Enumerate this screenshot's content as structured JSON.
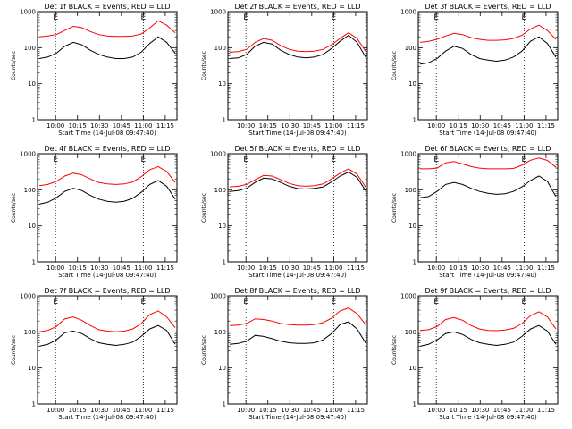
{
  "figure": {
    "xlabel": "Start Time (14-Jul-08 09:47:40)",
    "ylabel": "Counts/sec"
  },
  "chart_data": [
    {
      "type": "line",
      "title": "Det 1f BLACK = Events, RED = LLD",
      "x_ticks": [
        "10:00",
        "10:15",
        "10:30",
        "10:45",
        "11:00",
        "11:15"
      ],
      "y_ticks": [
        "1000",
        "100",
        "10",
        "1"
      ],
      "ylim": [
        1,
        1000
      ],
      "log_y": true,
      "markers": [
        {
          "time": "10:00",
          "label": "E"
        },
        {
          "time": "11:00",
          "label": "E"
        }
      ],
      "series": [
        {
          "color": "#ff0000",
          "values": [
            200,
            210,
            230,
            300,
            390,
            360,
            280,
            230,
            210,
            205,
            205,
            210,
            240,
            350,
            560,
            420,
            260
          ]
        },
        {
          "color": "#000000",
          "values": [
            50,
            55,
            70,
            110,
            140,
            120,
            85,
            65,
            55,
            50,
            50,
            55,
            75,
            130,
            200,
            140,
            70
          ]
        }
      ]
    },
    {
      "type": "line",
      "title": "Det 2f BLACK = Events, RED = LLD",
      "x_ticks": [
        "10:00",
        "10:15",
        "10:30",
        "10:45",
        "11:00",
        "11:15"
      ],
      "y_ticks": [
        "1000",
        "100",
        "10",
        "1"
      ],
      "ylim": [
        1,
        1000
      ],
      "log_y": true,
      "markers": [
        {
          "time": "10:00",
          "label": "E"
        },
        {
          "time": "11:00",
          "label": "E"
        }
      ],
      "series": [
        {
          "color": "#ff0000",
          "values": [
            75,
            78,
            90,
            140,
            180,
            160,
            115,
            90,
            80,
            78,
            80,
            90,
            120,
            180,
            260,
            180,
            80
          ]
        },
        {
          "color": "#000000",
          "values": [
            50,
            52,
            65,
            110,
            140,
            125,
            85,
            65,
            55,
            52,
            55,
            65,
            95,
            150,
            220,
            140,
            55
          ]
        }
      ]
    },
    {
      "type": "line",
      "title": "Det 3f BLACK = Events, RED = LLD",
      "x_ticks": [
        "10:00",
        "10:15",
        "10:30",
        "10:45",
        "11:00",
        "11:15"
      ],
      "y_ticks": [
        "1000",
        "100",
        "10",
        "1"
      ],
      "ylim": [
        1,
        1000
      ],
      "log_y": true,
      "markers": [
        {
          "time": "10:00",
          "label": "E"
        },
        {
          "time": "11:00",
          "label": "E"
        }
      ],
      "series": [
        {
          "color": "#ff0000",
          "values": [
            140,
            150,
            170,
            210,
            250,
            230,
            190,
            170,
            160,
            160,
            165,
            180,
            220,
            330,
            420,
            300,
            170
          ]
        },
        {
          "color": "#000000",
          "values": [
            35,
            38,
            50,
            80,
            110,
            95,
            65,
            50,
            45,
            42,
            45,
            55,
            80,
            150,
            200,
            130,
            55
          ]
        }
      ]
    },
    {
      "type": "line",
      "title": "Det 4f BLACK = Events, RED = LLD",
      "x_ticks": [
        "10:00",
        "10:15",
        "10:30",
        "10:45",
        "11:00",
        "11:15"
      ],
      "y_ticks": [
        "1000",
        "100",
        "10",
        "1"
      ],
      "ylim": [
        1,
        1000
      ],
      "log_y": true,
      "markers": [
        {
          "time": "10:00",
          "label": "E"
        },
        {
          "time": "11:00",
          "label": "E"
        }
      ],
      "series": [
        {
          "color": "#ff0000",
          "values": [
            130,
            140,
            170,
            240,
            290,
            260,
            200,
            160,
            145,
            140,
            145,
            165,
            230,
            360,
            440,
            320,
            160
          ]
        },
        {
          "color": "#000000",
          "values": [
            40,
            45,
            60,
            90,
            110,
            95,
            70,
            55,
            48,
            45,
            48,
            58,
            85,
            140,
            180,
            125,
            55
          ]
        }
      ]
    },
    {
      "type": "line",
      "title": "Det 5f BLACK = Events, RED = LLD",
      "x_ticks": [
        "10:00",
        "10:15",
        "10:30",
        "10:45",
        "11:00",
        "11:15"
      ],
      "y_ticks": [
        "1000",
        "100",
        "10",
        "1"
      ],
      "ylim": [
        1,
        1000
      ],
      "log_y": true,
      "markers": [
        {
          "time": "10:00",
          "label": "E"
        },
        {
          "time": "11:00",
          "label": "E"
        }
      ],
      "series": [
        {
          "color": "#ff0000",
          "values": [
            120,
            125,
            140,
            190,
            250,
            240,
            190,
            150,
            130,
            125,
            130,
            145,
            200,
            290,
            380,
            270,
            120
          ]
        },
        {
          "color": "#000000",
          "values": [
            90,
            95,
            110,
            160,
            210,
            200,
            160,
            125,
            108,
            105,
            110,
            120,
            165,
            240,
            310,
            220,
            95
          ]
        }
      ]
    },
    {
      "type": "line",
      "title": "Det 6f BLACK = Events, RED = LLD",
      "x_ticks": [
        "10:00",
        "10:15",
        "10:30",
        "10:45",
        "11:00",
        "11:15"
      ],
      "y_ticks": [
        "1000",
        "100",
        "10",
        "1"
      ],
      "ylim": [
        1,
        1000
      ],
      "log_y": true,
      "markers": [
        {
          "time": "10:00",
          "label": "E"
        },
        {
          "time": "11:00",
          "label": "E"
        }
      ],
      "series": [
        {
          "color": "#ff0000",
          "values": [
            380,
            380,
            400,
            560,
            610,
            520,
            440,
            400,
            380,
            380,
            380,
            390,
            480,
            660,
            760,
            650,
            420
          ]
        },
        {
          "color": "#000000",
          "values": [
            60,
            65,
            90,
            140,
            160,
            140,
            110,
            90,
            80,
            75,
            78,
            90,
            120,
            180,
            240,
            170,
            65
          ]
        }
      ]
    },
    {
      "type": "line",
      "title": "Det 7f BLACK = Events, RED = LLD",
      "x_ticks": [
        "10:00",
        "10:15",
        "10:30",
        "10:45",
        "11:00",
        "11:15"
      ],
      "y_ticks": [
        "1000",
        "100",
        "10",
        "1"
      ],
      "ylim": [
        1,
        1000
      ],
      "log_y": true,
      "markers": [
        {
          "time": "10:00",
          "label": "E"
        },
        {
          "time": "11:00",
          "label": "E"
        }
      ],
      "series": [
        {
          "color": "#ff0000",
          "values": [
            100,
            110,
            140,
            230,
            260,
            210,
            150,
            115,
            105,
            100,
            105,
            120,
            170,
            300,
            380,
            260,
            130
          ]
        },
        {
          "color": "#000000",
          "values": [
            40,
            45,
            60,
            95,
            105,
            90,
            65,
            50,
            45,
            42,
            45,
            52,
            75,
            120,
            150,
            110,
            45
          ]
        }
      ]
    },
    {
      "type": "line",
      "title": "Det 8f BLACK = Events, RED = LLD",
      "x_ticks": [
        "10:00",
        "10:15",
        "10:30",
        "10:45",
        "11:00",
        "11:15"
      ],
      "y_ticks": [
        "1000",
        "100",
        "10",
        "1"
      ],
      "ylim": [
        1,
        1000
      ],
      "log_y": true,
      "markers": [
        {
          "time": "10:00",
          "label": "E"
        },
        {
          "time": "11:00",
          "label": "E"
        }
      ],
      "series": [
        {
          "color": "#ff0000",
          "values": [
            150,
            155,
            170,
            230,
            220,
            200,
            170,
            160,
            155,
            155,
            160,
            180,
            240,
            380,
            460,
            320,
            160
          ]
        },
        {
          "color": "#000000",
          "values": [
            45,
            48,
            55,
            80,
            75,
            65,
            55,
            50,
            48,
            48,
            50,
            60,
            90,
            160,
            190,
            120,
            50
          ]
        }
      ]
    },
    {
      "type": "line",
      "title": "Det 9f BLACK = Events, RED = LLD",
      "x_ticks": [
        "10:00",
        "10:15",
        "10:30",
        "10:45",
        "11:00",
        "11:15"
      ],
      "y_ticks": [
        "1000",
        "100",
        "10",
        "1"
      ],
      "ylim": [
        1,
        1000
      ],
      "log_y": true,
      "markers": [
        {
          "time": "10:00",
          "label": "E"
        },
        {
          "time": "11:00",
          "label": "E"
        }
      ],
      "series": [
        {
          "color": "#ff0000",
          "values": [
            110,
            115,
            140,
            220,
            250,
            210,
            150,
            120,
            110,
            108,
            112,
            125,
            170,
            280,
            360,
            260,
            120
          ]
        },
        {
          "color": "#000000",
          "values": [
            40,
            45,
            60,
            90,
            100,
            85,
            62,
            50,
            45,
            42,
            45,
            52,
            75,
            120,
            150,
            105,
            45
          ]
        }
      ]
    }
  ]
}
